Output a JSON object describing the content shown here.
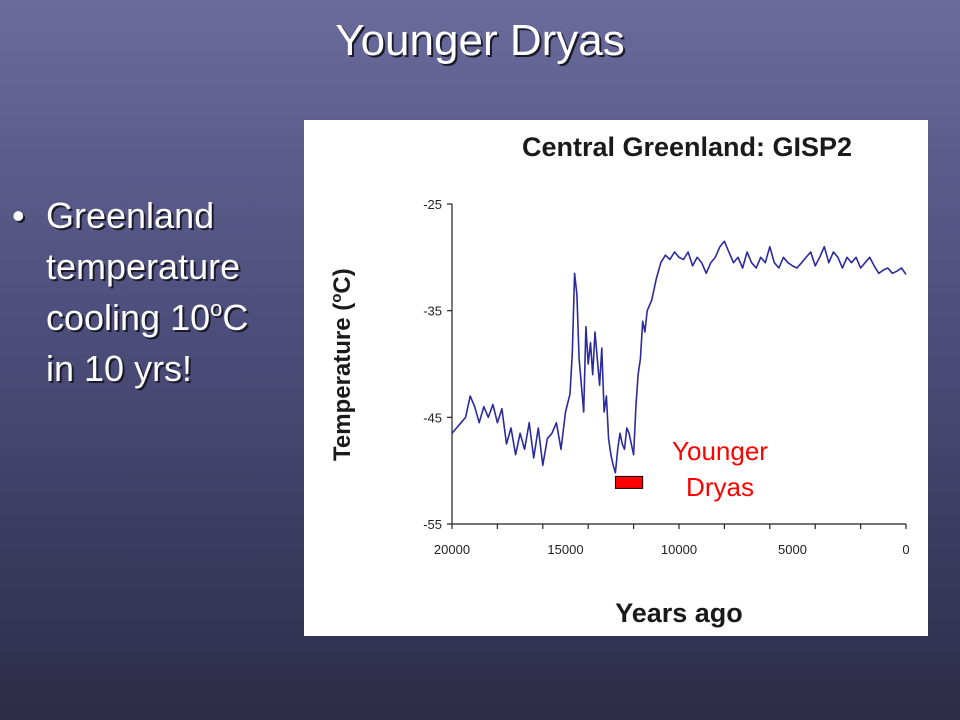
{
  "slide": {
    "title": "Younger Dryas",
    "bullet": {
      "marker": "•",
      "lines": [
        "Greenland",
        "temperature",
        "cooling 10",
        "in 10 yrs!"
      ],
      "superscript": "o",
      "unit": "C"
    }
  },
  "chart_data": {
    "type": "line",
    "title": "Central Greenland: GISP2",
    "xlabel": "Years ago",
    "ylabel_parts": [
      "Temperature (",
      "o",
      "C)"
    ],
    "xlim": [
      20000,
      0
    ],
    "ylim": [
      -55,
      -25
    ],
    "x_ticks": [
      20000,
      15000,
      10000,
      5000,
      0
    ],
    "y_ticks": [
      -25,
      -35,
      -45,
      -55
    ],
    "grid": false,
    "series_color": "#2b2b9e",
    "annotation": {
      "lines": [
        "Younger",
        "Dryas"
      ],
      "color": "#ff0000",
      "bar_x_range": [
        12800,
        11600
      ],
      "bar_y": -51.1
    },
    "series": [
      {
        "x": [
          20000,
          19800,
          19600,
          19400,
          19200,
          19000,
          18800,
          18600,
          18400,
          18200,
          18000,
          17800,
          17600,
          17400,
          17200,
          17000,
          16800,
          16600,
          16400,
          16200,
          16000,
          15800,
          15600,
          15400,
          15200,
          15000,
          14800,
          14700,
          14600,
          14500,
          14400,
          14300,
          14200,
          14100,
          14000,
          13900,
          13800,
          13700,
          13600,
          13500,
          13400,
          13300,
          13200,
          13100,
          13000,
          12900,
          12800,
          12700,
          12600,
          12500,
          12400,
          12300,
          12200,
          12100,
          12000,
          11900,
          11800,
          11700,
          11600,
          11500,
          11400,
          11200,
          11000,
          10800,
          10600,
          10400,
          10200,
          10000,
          9800,
          9600,
          9400,
          9200,
          9000,
          8800,
          8600,
          8400,
          8200,
          8000,
          7800,
          7600,
          7400,
          7200,
          7000,
          6800,
          6600,
          6400,
          6200,
          6000,
          5800,
          5600,
          5400,
          5200,
          5000,
          4800,
          4600,
          4400,
          4200,
          4000,
          3800,
          3600,
          3400,
          3200,
          3000,
          2800,
          2600,
          2400,
          2200,
          2000,
          1800,
          1600,
          1400,
          1200,
          1000,
          800,
          600,
          400,
          200,
          0
        ],
        "y": [
          -46.5,
          -46.0,
          -45.5,
          -45.0,
          -43.0,
          -44.0,
          -45.5,
          -44.0,
          -45.0,
          -43.8,
          -45.5,
          -44.2,
          -47.5,
          -46.0,
          -48.5,
          -46.5,
          -48.0,
          -45.5,
          -48.8,
          -46.0,
          -49.5,
          -47.0,
          -46.5,
          -45.5,
          -48.0,
          -44.5,
          -42.8,
          -39.0,
          -31.5,
          -33.5,
          -39.5,
          -42.0,
          -44.5,
          -36.5,
          -40.0,
          -38.0,
          -41.0,
          -37.0,
          -39.5,
          -42.0,
          -38.5,
          -44.5,
          -43.0,
          -47.0,
          -48.5,
          -49.5,
          -50.2,
          -48.0,
          -46.5,
          -47.5,
          -48.0,
          -46.0,
          -46.5,
          -47.5,
          -48.5,
          -44.0,
          -41.0,
          -39.5,
          -36.0,
          -37.0,
          -35.0,
          -34.0,
          -32.0,
          -30.5,
          -29.8,
          -30.2,
          -29.5,
          -30.0,
          -30.2,
          -29.5,
          -30.8,
          -30.0,
          -30.5,
          -31.5,
          -30.5,
          -30.0,
          -29.0,
          -28.5,
          -29.5,
          -30.5,
          -30.0,
          -31.0,
          -29.5,
          -30.5,
          -31.0,
          -30.0,
          -30.5,
          -29.0,
          -30.5,
          -31.0,
          -30.0,
          -30.5,
          -30.8,
          -31.0,
          -30.5,
          -30.0,
          -29.5,
          -30.8,
          -30.0,
          -29.0,
          -30.5,
          -29.5,
          -30.0,
          -31.0,
          -30.0,
          -30.5,
          -30.0,
          -31.0,
          -30.5,
          -30.0,
          -30.8,
          -31.5,
          -31.2,
          -31.0,
          -31.5,
          -31.3,
          -31.0,
          -31.6
        ]
      }
    ]
  }
}
